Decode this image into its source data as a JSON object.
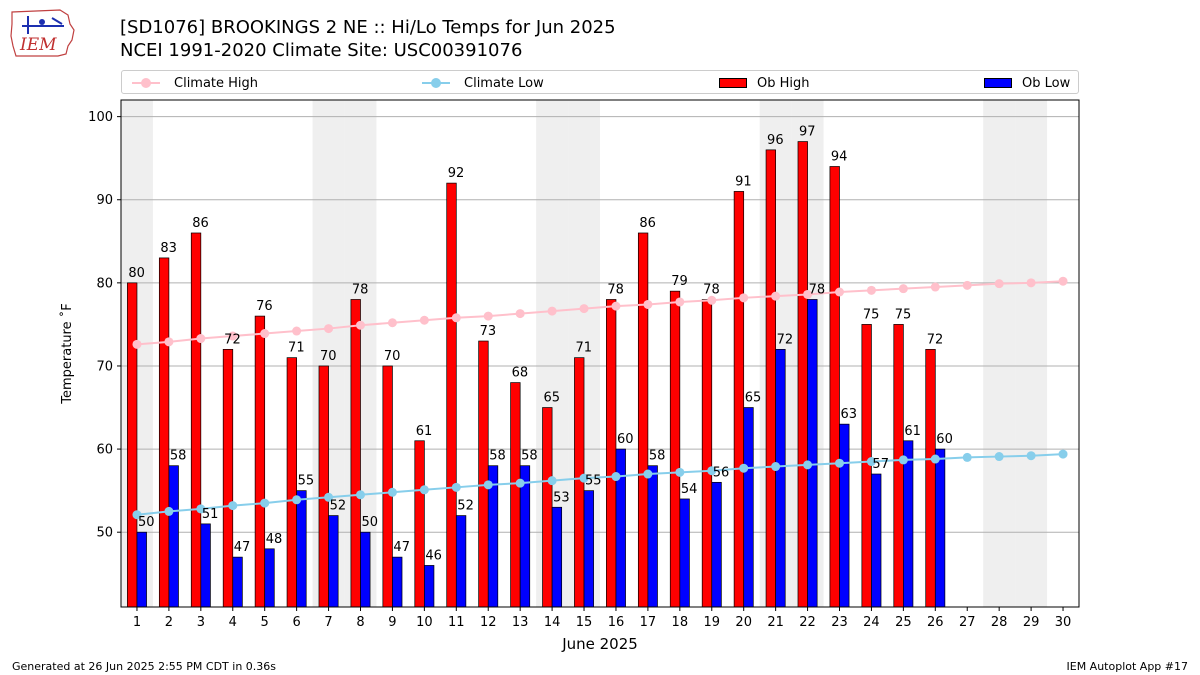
{
  "header": {
    "logo_text": "IEM",
    "title_line1": "[SD1076] BROOKINGS 2 NE :: Hi/Lo Temps for Jun 2025",
    "title_line2": "NCEI 1991-2020 Climate Site: USC00391076"
  },
  "footer": {
    "left": "Generated at 26 Jun 2025 2:55 PM CDT in 0.36s",
    "right": "IEM Autoplot App #17"
  },
  "colors": {
    "climate_high": "#ffc0cb",
    "climate_low": "#87ceeb",
    "ob_high": "#ff0000",
    "ob_low": "#0000ff",
    "weekend_band": "#efefef"
  },
  "chart_data": {
    "type": "bar",
    "xlabel": "June 2025",
    "ylabel": "Temperature ˚F",
    "ylim": [
      41,
      102
    ],
    "yticks": [
      50,
      60,
      70,
      80,
      90,
      100
    ],
    "grid": "horizontal",
    "legend_position": "top",
    "categories": [
      "1",
      "2",
      "3",
      "4",
      "5",
      "6",
      "7",
      "8",
      "9",
      "10",
      "11",
      "12",
      "13",
      "14",
      "15",
      "16",
      "17",
      "18",
      "19",
      "20",
      "21",
      "22",
      "23",
      "24",
      "25",
      "26",
      "27",
      "28",
      "29",
      "30"
    ],
    "weekend_days": [
      1,
      7,
      8,
      14,
      15,
      21,
      22,
      28,
      29
    ],
    "series": [
      {
        "name": "Climate High",
        "kind": "line",
        "values": [
          72.6,
          72.9,
          73.3,
          73.6,
          73.9,
          74.2,
          74.5,
          74.9,
          75.2,
          75.5,
          75.8,
          76.0,
          76.3,
          76.6,
          76.9,
          77.2,
          77.4,
          77.7,
          77.9,
          78.2,
          78.4,
          78.6,
          78.9,
          79.1,
          79.3,
          79.5,
          79.7,
          79.9,
          80.0,
          80.2
        ]
      },
      {
        "name": "Climate Low",
        "kind": "line",
        "values": [
          52.1,
          52.5,
          52.8,
          53.2,
          53.5,
          53.9,
          54.2,
          54.5,
          54.8,
          55.1,
          55.4,
          55.7,
          55.9,
          56.2,
          56.5,
          56.7,
          57.0,
          57.2,
          57.4,
          57.7,
          57.9,
          58.1,
          58.3,
          58.5,
          58.7,
          58.8,
          59.0,
          59.1,
          59.2,
          59.4
        ]
      },
      {
        "name": "Ob High",
        "kind": "bar",
        "values": [
          80,
          83,
          86,
          72,
          76,
          71,
          70,
          78,
          70,
          61,
          92,
          73,
          68,
          65,
          71,
          78,
          86,
          79,
          78,
          91,
          96,
          97,
          94,
          75,
          75,
          72,
          null,
          null,
          null,
          null
        ]
      },
      {
        "name": "Ob Low",
        "kind": "bar",
        "values": [
          50,
          58,
          51,
          47,
          48,
          55,
          52,
          50,
          47,
          46,
          52,
          58,
          58,
          53,
          55,
          60,
          58,
          54,
          56,
          65,
          72,
          78,
          63,
          57,
          61,
          60,
          null,
          null,
          null,
          null
        ]
      }
    ]
  }
}
